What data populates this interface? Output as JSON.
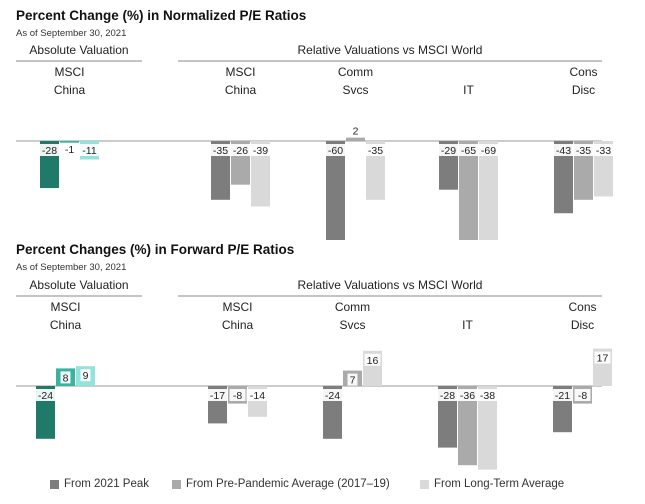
{
  "colors": {
    "china_dark": "#1f7a6a",
    "china_mid": "#36b4a0",
    "china_light": "#94e2dc",
    "peak": "#7d7d7d",
    "pre_pandemic": "#aaaaaa",
    "long_term": "#d9d9d9",
    "axis": "#9a9a9a"
  },
  "legend": [
    {
      "label": "From 2021 Peak",
      "color": "#7d7d7d"
    },
    {
      "label": "From Pre-Pandemic Average (2017–19)",
      "color": "#aaaaaa"
    },
    {
      "label": "From Long-Term Average",
      "color": "#d9d9d9"
    }
  ],
  "chart_data": [
    {
      "type": "bar",
      "title": "Percent Change (%) in Normalized P/E Ratios",
      "subtitle": "As of September 30, 2021",
      "group_headers": [
        "Absolute Valuation",
        "Relative Valuations vs MSCI World"
      ],
      "categories": [
        [
          "MSCI",
          "China"
        ],
        [
          "MSCI",
          "China"
        ],
        [
          "Comm",
          "Svcs"
        ],
        [
          "IT"
        ],
        [
          "Cons",
          "Disc"
        ]
      ],
      "series_labels": [
        "From 2021 Peak",
        "From Pre-Pandemic Average (2017–19)",
        "From Long-Term Average"
      ],
      "values": [
        [
          -28,
          -1,
          -11
        ],
        [
          -35,
          -26,
          -39
        ],
        [
          -60,
          2,
          -35
        ],
        [
          -29,
          -65,
          -69
        ],
        [
          -43,
          -35,
          -33
        ]
      ],
      "ylim": [
        -70,
        3
      ]
    },
    {
      "type": "bar",
      "title": "Percent Changes (%) in Forward P/E Ratios",
      "subtitle": "As of September 30, 2021",
      "group_headers": [
        "Absolute Valuation",
        "Relative Valuations vs MSCI World"
      ],
      "categories": [
        [
          "MSCI",
          "China"
        ],
        [
          "MSCI",
          "China"
        ],
        [
          "Comm",
          "Svcs"
        ],
        [
          "IT"
        ],
        [
          "Cons",
          "Disc"
        ]
      ],
      "series_labels": [
        "From 2021 Peak",
        "From Pre-Pandemic Average (2017–19)",
        "From Long-Term Average"
      ],
      "values": [
        [
          -24,
          8,
          9
        ],
        [
          -17,
          -8,
          -14
        ],
        [
          -24,
          7,
          16
        ],
        [
          -28,
          -36,
          -38
        ],
        [
          -21,
          -8,
          17
        ]
      ],
      "ylim": [
        -38,
        17
      ]
    }
  ]
}
